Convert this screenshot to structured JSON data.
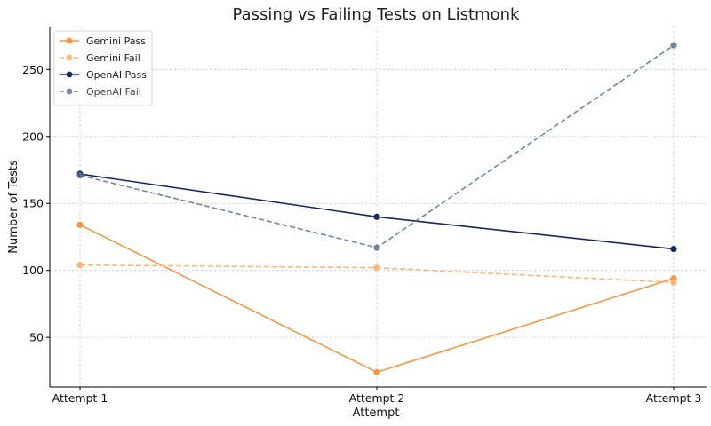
{
  "chart_data": {
    "type": "line",
    "title": "Passing vs Failing Tests on Listmonk",
    "xlabel": "Attempt",
    "ylabel": "Number of Tests",
    "categories": [
      "Attempt 1",
      "Attempt 2",
      "Attempt 3"
    ],
    "ylim": [
      13,
      282
    ],
    "yticks": [
      50,
      100,
      150,
      200,
      250
    ],
    "grid": true,
    "legend_position": "top-left",
    "series": [
      {
        "name": "Gemini Pass",
        "values": [
          134,
          24,
          94
        ],
        "color": "#f59642",
        "dashed": false,
        "opacity": 1.0
      },
      {
        "name": "Gemini Fail",
        "values": [
          104,
          102,
          91
        ],
        "color": "#fbb77a",
        "dashed": true,
        "opacity": 1.0
      },
      {
        "name": "OpenAI Pass",
        "values": [
          172,
          140,
          116
        ],
        "color": "#16295a",
        "dashed": false,
        "opacity": 1.0
      },
      {
        "name": "OpenAI Fail",
        "values": [
          171,
          117,
          268
        ],
        "color": "#5c6f93",
        "dashed": true,
        "opacity": 0.85
      }
    ]
  }
}
